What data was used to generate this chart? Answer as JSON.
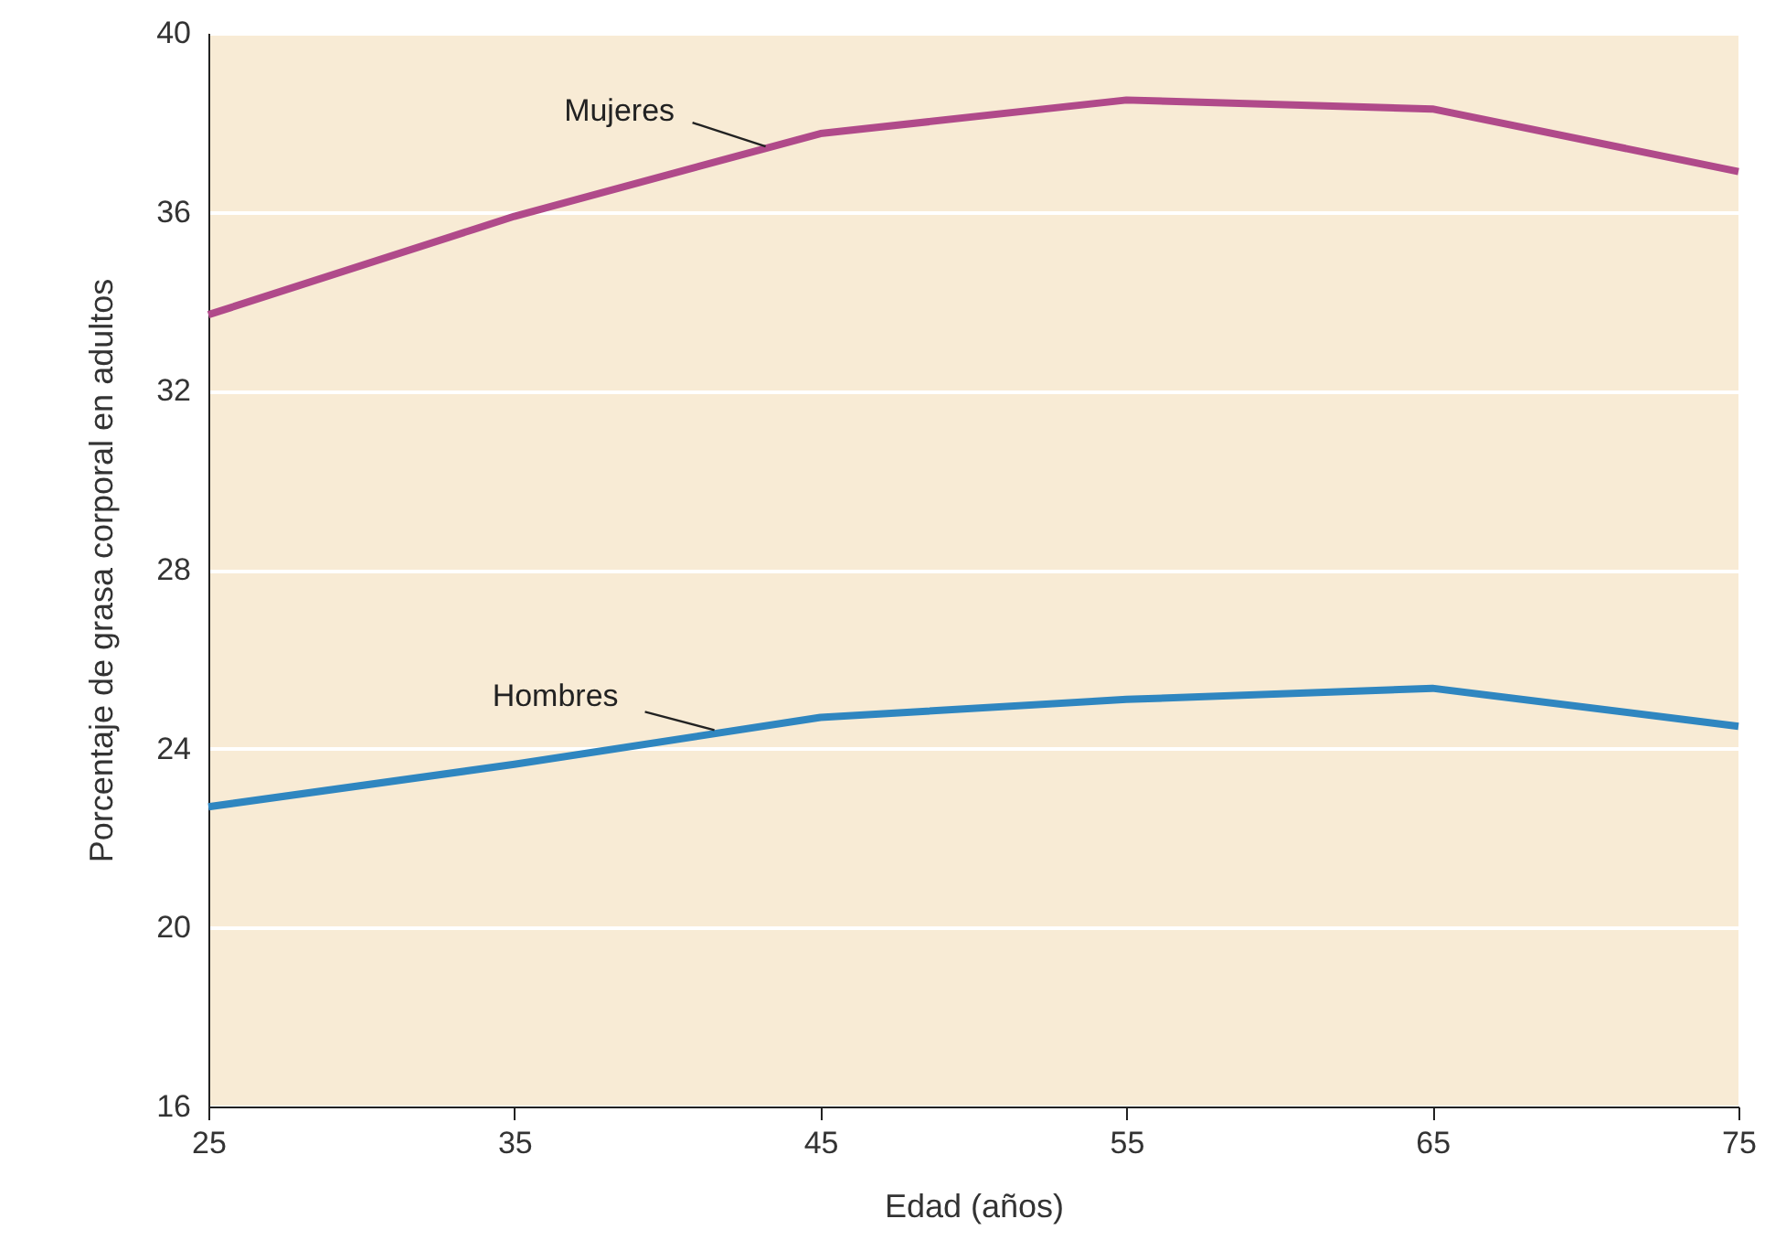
{
  "chart_data": {
    "type": "line",
    "xlabel": "Edad (años)",
    "ylabel": "Porcentaje de grasa corporal en adultos",
    "x": [
      25,
      35,
      45,
      55,
      65,
      75
    ],
    "series": [
      {
        "name": "Mujeres",
        "color": "#b04a8a",
        "values": [
          33.7,
          35.9,
          37.75,
          38.5,
          38.3,
          36.9
        ]
      },
      {
        "name": "Hombres",
        "color": "#2f86c0",
        "values": [
          22.7,
          23.65,
          24.7,
          25.1,
          25.35,
          24.5
        ]
      }
    ],
    "xlim": [
      25,
      75
    ],
    "xticks": [
      25,
      35,
      45,
      55,
      65,
      75
    ],
    "ylim": [
      16,
      40
    ],
    "yticks": [
      16,
      20,
      24,
      28,
      32,
      36,
      40
    ],
    "grid": "y",
    "marker": "none",
    "line_style": "solid"
  }
}
